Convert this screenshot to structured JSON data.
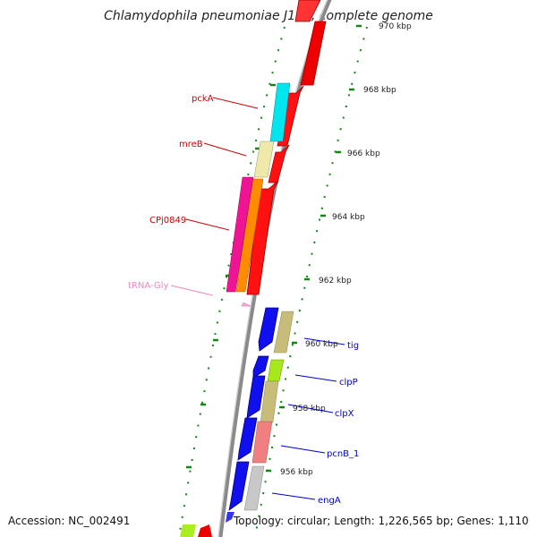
{
  "title": "Chlamydophila pneumoniae J138, complete genome",
  "accession": "Accession: NC_002491",
  "topology": "Topology: circular; Length: 1,226,565 bp; Genes: 1,110",
  "colors": {
    "backbone": "#8a8a8a",
    "tick": "#118811",
    "red_strand_label": "#cc0000",
    "blue_strand_label": "#0000cc",
    "trna_label": "#ee88bb"
  },
  "ticks": [
    {
      "label": "970 kbp"
    },
    {
      "label": "968 kbp"
    },
    {
      "label": "966 kbp"
    },
    {
      "label": "964 kbp"
    },
    {
      "label": "962 kbp"
    },
    {
      "label": "960 kbp"
    },
    {
      "label": "958 kbp"
    },
    {
      "label": "956 kbp"
    }
  ],
  "gene_labels": {
    "pckA": "pckA",
    "mreB": "mreB",
    "CPj0849": "CPj0849",
    "tRNA_Gly": "tRNA-Gly",
    "tig": "tig",
    "clpP": "clpP",
    "clpX": "clpX",
    "pcnB_1": "pcnB_1",
    "engA": "engA"
  }
}
